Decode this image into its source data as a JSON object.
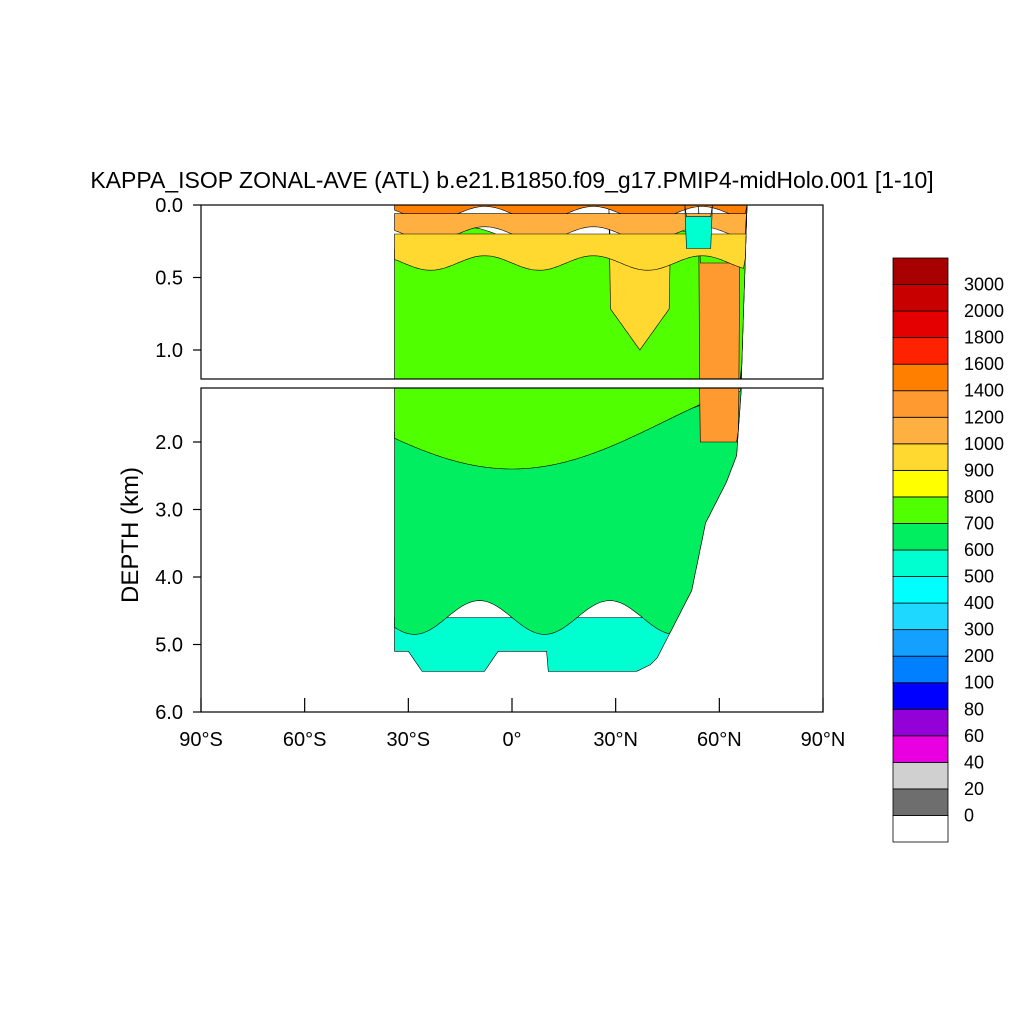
{
  "chart_data": {
    "type": "heatmap",
    "title": "KAPPA_ISOP ZONAL-AVE (ATL) b.e21.B1850.f09_g17.PMIP4-midHolo.001 [1-10]",
    "ylabel": "DEPTH (km)",
    "xlabel": "",
    "xlim": [
      -90,
      90
    ],
    "x_ticks": [
      {
        "value": -90,
        "label": "90°S"
      },
      {
        "value": -60,
        "label": "60°S"
      },
      {
        "value": -30,
        "label": "30°S"
      },
      {
        "value": 0,
        "label": "0°"
      },
      {
        "value": 30,
        "label": "30°N"
      },
      {
        "value": 60,
        "label": "60°N"
      },
      {
        "value": 90,
        "label": "90°N"
      }
    ],
    "panels": [
      {
        "name": "upper",
        "ylim": [
          0.0,
          1.2
        ],
        "y_ticks": [
          {
            "value": 0.0,
            "label": "0.0"
          },
          {
            "value": 0.5,
            "label": "0.5"
          },
          {
            "value": 1.0,
            "label": "1.0"
          }
        ]
      },
      {
        "name": "lower",
        "ylim": [
          1.2,
          6.0
        ],
        "y_ticks": [
          {
            "value": 2.0,
            "label": "2.0"
          },
          {
            "value": 3.0,
            "label": "3.0"
          },
          {
            "value": 4.0,
            "label": "4.0"
          },
          {
            "value": 5.0,
            "label": "5.0"
          },
          {
            "value": 6.0,
            "label": "6.0"
          }
        ]
      }
    ],
    "colorbar": {
      "levels": [
        "0",
        "20",
        "40",
        "60",
        "80",
        "100",
        "200",
        "300",
        "400",
        "500",
        "600",
        "700",
        "800",
        "900",
        "1000",
        "1200",
        "1400",
        "1600",
        "1800",
        "2000",
        "3000"
      ],
      "colors": [
        "#ffffff",
        "#6e6e6e",
        "#d0d0d0",
        "#e800e0",
        "#9400d8",
        "#0000ff",
        "#0080ff",
        "#14a0ff",
        "#1ed8ff",
        "#00ffff",
        "#00ffd0",
        "#00ee60",
        "#50ff00",
        "#ffff00",
        "#ffd830",
        "#ffb040",
        "#ff9a30",
        "#ff7f00",
        "#ff2200",
        "#e40000",
        "#c80000",
        "#a80000"
      ]
    },
    "ocean_lat_range": [
      -34,
      69
    ],
    "field_regions": {
      "ocean_depth_profile": [
        [
          -34,
          5.1
        ],
        [
          -30,
          5.1
        ],
        [
          -26,
          5.4
        ],
        [
          -8,
          5.4
        ],
        [
          -4,
          5.1
        ],
        [
          10,
          5.1
        ],
        [
          10,
          5.4
        ],
        [
          36,
          5.4
        ],
        [
          40,
          5.3
        ],
        [
          42,
          5.2
        ],
        [
          48,
          4.6
        ],
        [
          52,
          4.2
        ],
        [
          56,
          3.2
        ],
        [
          62,
          2.6
        ],
        [
          65,
          2.2
        ],
        [
          68,
          0.0
        ]
      ],
      "shallow_bands": [
        {
          "level": 1400,
          "top": 0.0,
          "bottom": 0.06
        },
        {
          "level": 1000,
          "top": 0.06,
          "bottom": 0.2
        },
        {
          "level": 900,
          "top": 0.2,
          "bottom": 0.4
        }
      ],
      "mid_level": 700,
      "deep_level": 600,
      "bottom_level": 500
    }
  }
}
